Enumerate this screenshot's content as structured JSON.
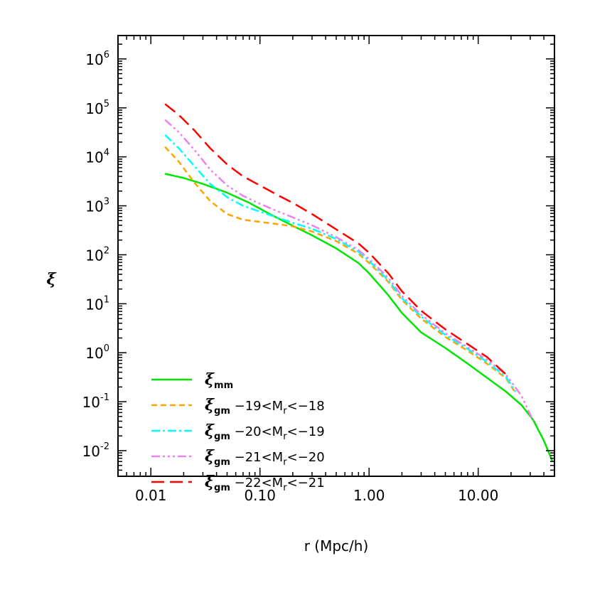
{
  "chart_data": {
    "type": "line",
    "xlabel": "r (Mpc/h)",
    "ylabel": "ξ",
    "x_scale": "log",
    "y_scale": "log",
    "xlim": [
      0.005,
      50
    ],
    "ylim": [
      0.003,
      3000000
    ],
    "x_ticks": [
      {
        "value": 0.01,
        "label": "0.01"
      },
      {
        "value": 0.1,
        "label": "0.10"
      },
      {
        "value": 1,
        "label": "1.00"
      },
      {
        "value": 10,
        "label": "10.00"
      }
    ],
    "y_ticks": [
      {
        "value": 0.01,
        "base": "10",
        "exp": "-2"
      },
      {
        "value": 0.1,
        "base": "10",
        "exp": "-1"
      },
      {
        "value": 1,
        "base": "10",
        "exp": "0"
      },
      {
        "value": 10,
        "base": "10",
        "exp": "1"
      },
      {
        "value": 100,
        "base": "10",
        "exp": "2"
      },
      {
        "value": 1000,
        "base": "10",
        "exp": "3"
      },
      {
        "value": 10000,
        "base": "10",
        "exp": "4"
      },
      {
        "value": 100000,
        "base": "10",
        "exp": "5"
      },
      {
        "value": 1000000,
        "base": "10",
        "exp": "6"
      }
    ],
    "grid": false,
    "legend_position": "bottom-left",
    "series": [
      {
        "name": "ξ_mm",
        "legend": {
          "sym": "ξ",
          "sub": "mm",
          "range": ""
        },
        "color": "#00e600",
        "dash": "",
        "x": [
          0.0135,
          0.02,
          0.03,
          0.05,
          0.08,
          0.12,
          0.2,
          0.3,
          0.5,
          0.8,
          1.0,
          1.5,
          2.0,
          3.0,
          5.0,
          8.0,
          12.0,
          18.0,
          25.0,
          32.0,
          40.0,
          48.0
        ],
        "y": [
          4500,
          3700,
          2800,
          1850,
          1150,
          700,
          390,
          250,
          135,
          68,
          42,
          15,
          6.5,
          2.6,
          1.25,
          0.6,
          0.31,
          0.16,
          0.085,
          0.042,
          0.016,
          0.006
        ]
      },
      {
        "name": "ξ_gm −19<M_r<−18",
        "legend": {
          "sym": "ξ",
          "sub": "gm",
          "range": " −19<M",
          "rsub": "r",
          "range2": "<−18"
        },
        "color": "#ffa500",
        "dash": "8,5",
        "x": [
          0.0135,
          0.018,
          0.025,
          0.035,
          0.05,
          0.07,
          0.1,
          0.15,
          0.2,
          0.3,
          0.5,
          0.8,
          1.0,
          1.5,
          2.0,
          3.0,
          5.0,
          8.0,
          12.0,
          18.0,
          22.0
        ],
        "y": [
          16000,
          8000,
          3000,
          1250,
          680,
          520,
          470,
          420,
          380,
          300,
          190,
          105,
          68,
          28,
          12,
          5.0,
          2.1,
          1.1,
          0.6,
          0.3,
          0.15
        ]
      },
      {
        "name": "ξ_gm −20<M_r<−19",
        "legend": {
          "sym": "ξ",
          "sub": "gm",
          "range": " −20<M",
          "rsub": "r",
          "range2": "<−19"
        },
        "color": "#00ffff",
        "dash": "12,4,3,4",
        "x": [
          0.0135,
          0.018,
          0.025,
          0.035,
          0.05,
          0.07,
          0.1,
          0.15,
          0.2,
          0.3,
          0.5,
          0.8,
          1.0,
          1.5,
          2.0,
          3.0,
          5.0,
          8.0,
          12.0,
          18.0,
          22.0
        ],
        "y": [
          28000,
          15000,
          6500,
          2800,
          1500,
          1000,
          760,
          560,
          450,
          340,
          210,
          115,
          75,
          30,
          13,
          5.5,
          2.3,
          1.2,
          0.65,
          0.32,
          0.16
        ]
      },
      {
        "name": "ξ_gm −21<M_r<−20",
        "legend": {
          "sym": "ξ",
          "sub": "gm",
          "range": " −21<M",
          "rsub": "r",
          "range2": "<−20"
        },
        "color": "#ee82ee",
        "dash": "12,4,3,4,3,4,3,4",
        "x": [
          0.0135,
          0.018,
          0.025,
          0.035,
          0.05,
          0.07,
          0.1,
          0.15,
          0.2,
          0.3,
          0.5,
          0.8,
          1.0,
          1.5,
          2.0,
          3.0,
          5.0,
          8.0,
          12.0,
          18.0,
          25.0,
          32.0
        ],
        "y": [
          57000,
          32000,
          14000,
          5500,
          2600,
          1600,
          1100,
          750,
          580,
          400,
          230,
          125,
          82,
          34,
          14.5,
          6.0,
          2.5,
          1.3,
          0.72,
          0.36,
          0.13,
          0.04
        ]
      },
      {
        "name": "ξ_gm −22<M_r<−21",
        "legend": {
          "sym": "ξ",
          "sub": "gm",
          "range": " −22<M",
          "rsub": "r",
          "range2": "<−21"
        },
        "color": "#ff0000",
        "dash": "18,8",
        "x": [
          0.0135,
          0.018,
          0.025,
          0.035,
          0.05,
          0.07,
          0.1,
          0.15,
          0.2,
          0.3,
          0.5,
          0.8,
          1.0,
          1.5,
          2.0,
          3.0,
          5.0,
          8.0,
          12.0,
          18.0
        ],
        "y": [
          120000,
          72000,
          35000,
          15000,
          7000,
          4000,
          2600,
          1600,
          1150,
          680,
          330,
          170,
          110,
          42,
          18,
          7.2,
          3.0,
          1.5,
          0.82,
          0.36
        ]
      }
    ]
  }
}
